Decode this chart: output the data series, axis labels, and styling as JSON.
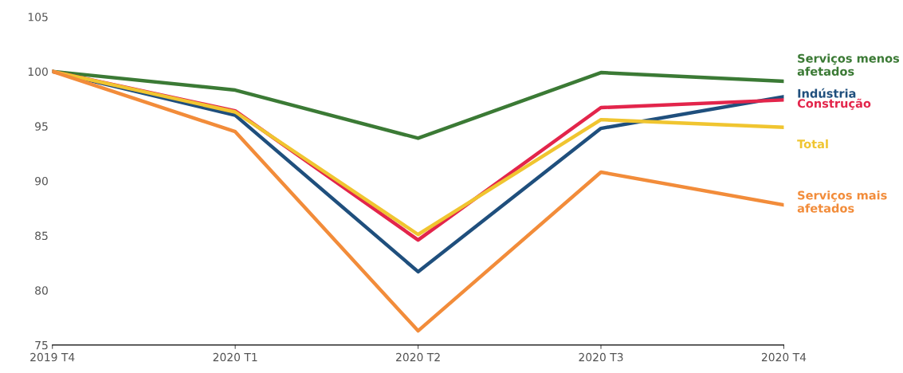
{
  "chart_data": {
    "type": "line",
    "categories": [
      "2019 T4",
      "2020 T1",
      "2020 T2",
      "2020 T3",
      "2020 T4"
    ],
    "ylim": [
      75,
      105
    ],
    "yticks": [
      75,
      80,
      85,
      90,
      95,
      100,
      105
    ],
    "grid": false,
    "legend": false,
    "marker": "none",
    "line_style": "solid",
    "series": [
      {
        "name": "Serviços menos\nafetados",
        "color": "#3b7a35",
        "values": [
          100,
          98.3,
          93.9,
          99.9,
          99.1
        ]
      },
      {
        "name": "Indústria",
        "color": "#1f4f7d",
        "values": [
          100,
          96.0,
          81.7,
          94.8,
          97.7
        ]
      },
      {
        "name": "Construção",
        "color": "#e3254b",
        "values": [
          100,
          96.4,
          84.6,
          96.7,
          97.4
        ]
      },
      {
        "name": "Total",
        "color": "#f0c530",
        "values": [
          100,
          96.3,
          85.1,
          95.6,
          94.9
        ]
      },
      {
        "name": "Serviços mais\nafetados",
        "color": "#f28c3a",
        "values": [
          100,
          94.5,
          76.3,
          90.8,
          87.8
        ]
      }
    ]
  }
}
